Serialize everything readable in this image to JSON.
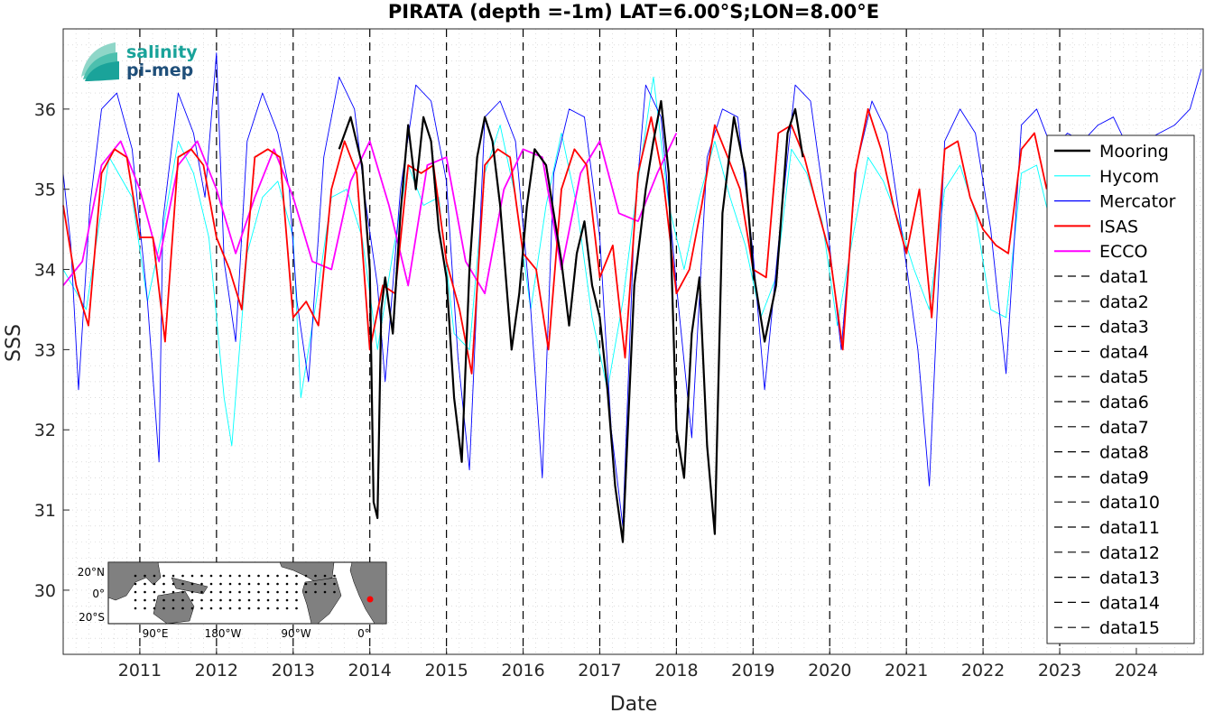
{
  "chart_data": {
    "type": "line",
    "title": "PIRATA (depth =-1m) LAT=6.00°S;LON=8.00°E",
    "xlabel": "Date",
    "ylabel": "SSS",
    "xlim": [
      "2010-01-01",
      "2024-11-15"
    ],
    "ylim": [
      29.2,
      37.0
    ],
    "x_ticks": [
      "2011",
      "2012",
      "2013",
      "2014",
      "2015",
      "2016",
      "2017",
      "2018",
      "2019",
      "2020",
      "2021",
      "2022",
      "2023",
      "2024"
    ],
    "y_ticks": [
      "30",
      "31",
      "32",
      "33",
      "34",
      "35",
      "36"
    ],
    "grid": "minor dotted",
    "legend_position": "right",
    "year_markers": [
      2011,
      2012,
      2013,
      2014,
      2015,
      2016,
      2017,
      2018,
      2019,
      2020,
      2021,
      2022,
      2023
    ],
    "series": [
      {
        "name": "Mooring",
        "color": "#000000",
        "x": [
          2013.6,
          2013.75,
          2013.9,
          2014.0,
          2014.05,
          2014.1,
          2014.15,
          2014.2,
          2014.3,
          2014.4,
          2014.5,
          2014.6,
          2014.7,
          2014.8,
          2014.9,
          2015.0,
          2015.1,
          2015.2,
          2015.3,
          2015.4,
          2015.5,
          2015.6,
          2015.7,
          2015.85,
          2015.95,
          2016.05,
          2016.15,
          2016.3,
          2016.5,
          2016.6,
          2016.7,
          2016.8,
          2016.9,
          2017.0,
          2017.1,
          2017.2,
          2017.3,
          2017.45,
          2017.6,
          2017.7,
          2017.8,
          2017.9,
          2018.0,
          2018.1,
          2018.2,
          2018.3,
          2018.4,
          2018.5,
          2018.6,
          2018.75,
          2018.9,
          2019.0,
          2019.15,
          2019.3,
          2019.45,
          2019.55,
          2019.65
        ],
        "y": [
          35.5,
          35.9,
          35.3,
          34.0,
          31.1,
          30.9,
          33.5,
          33.9,
          33.2,
          34.7,
          35.8,
          35.0,
          35.9,
          35.6,
          34.5,
          33.9,
          32.4,
          31.6,
          34.0,
          35.4,
          35.9,
          35.6,
          34.8,
          33.0,
          33.7,
          34.8,
          35.5,
          35.3,
          34.1,
          33.3,
          34.2,
          34.6,
          33.8,
          33.4,
          32.5,
          31.3,
          30.6,
          33.8,
          35.0,
          35.6,
          36.1,
          35.2,
          32.0,
          31.4,
          33.2,
          33.9,
          31.8,
          30.7,
          34.7,
          35.9,
          35.2,
          34.0,
          33.1,
          33.8,
          35.7,
          36.0,
          35.4
        ]
      },
      {
        "name": "Hycom",
        "color": "#00ffff",
        "x": [
          2010.0,
          2010.3,
          2010.6,
          2010.9,
          2011.1,
          2011.3,
          2011.5,
          2011.7,
          2011.9,
          2012.1,
          2012.2,
          2012.4,
          2012.6,
          2012.8,
          2013.0,
          2013.1,
          2013.3,
          2013.5,
          2013.7,
          2013.9,
          2014.1,
          2014.3,
          2014.5,
          2014.7,
          2014.9,
          2015.1,
          2015.3,
          2015.5,
          2015.7,
          2015.9,
          2016.1,
          2016.3,
          2016.5,
          2016.7,
          2016.9,
          2017.1,
          2017.3,
          2017.5,
          2017.7,
          2017.9,
          2018.1,
          2018.3,
          2018.5,
          2018.7,
          2018.9,
          2019.1,
          2019.3,
          2019.5,
          2019.7,
          2019.9,
          2020.1,
          2020.3,
          2020.5,
          2020.7,
          2020.9,
          2021.1,
          2021.3,
          2021.5,
          2021.7,
          2021.9,
          2022.1,
          2022.3,
          2022.5,
          2022.7,
          2022.9
        ],
        "y": [
          34.0,
          33.5,
          35.4,
          34.9,
          33.6,
          34.5,
          35.6,
          35.2,
          34.4,
          32.4,
          31.8,
          34.2,
          34.9,
          35.1,
          34.4,
          32.4,
          33.6,
          34.9,
          35.0,
          34.4,
          33.0,
          34.2,
          35.3,
          34.8,
          34.9,
          33.2,
          33.0,
          35.2,
          35.8,
          34.9,
          33.5,
          34.8,
          35.7,
          34.8,
          33.4,
          32.5,
          33.6,
          35.1,
          36.4,
          34.8,
          34.0,
          34.9,
          35.6,
          34.9,
          34.3,
          33.4,
          33.9,
          35.5,
          35.2,
          34.6,
          33.3,
          34.4,
          35.4,
          35.1,
          34.6,
          34.0,
          33.5,
          35.0,
          35.3,
          34.7,
          33.5,
          33.4,
          35.2,
          35.3,
          34.5
        ]
      },
      {
        "name": "Mercator",
        "color": "#0000ff",
        "x": [
          2010.0,
          2010.1,
          2010.2,
          2010.35,
          2010.5,
          2010.7,
          2010.9,
          2011.1,
          2011.25,
          2011.3,
          2011.5,
          2011.7,
          2011.85,
          2012.0,
          2012.1,
          2012.25,
          2012.4,
          2012.6,
          2012.8,
          2012.95,
          2013.05,
          2013.2,
          2013.4,
          2013.6,
          2013.8,
          2013.95,
          2014.1,
          2014.2,
          2014.4,
          2014.6,
          2014.8,
          2015.0,
          2015.15,
          2015.3,
          2015.5,
          2015.7,
          2015.9,
          2016.1,
          2016.25,
          2016.4,
          2016.6,
          2016.8,
          2017.0,
          2017.15,
          2017.3,
          2017.45,
          2017.6,
          2017.8,
          2018.0,
          2018.2,
          2018.4,
          2018.6,
          2018.8,
          2019.0,
          2019.15,
          2019.35,
          2019.55,
          2019.75,
          2019.95,
          2020.15,
          2020.35,
          2020.55,
          2020.75,
          2020.95,
          2021.15,
          2021.3,
          2021.5,
          2021.7,
          2021.9,
          2022.1,
          2022.3,
          2022.5,
          2022.7,
          2022.9,
          2023.1,
          2023.3,
          2023.5,
          2023.7,
          2023.9,
          2024.1,
          2024.3,
          2024.5,
          2024.7,
          2024.85
        ],
        "y": [
          35.2,
          34.3,
          32.5,
          34.8,
          36.0,
          36.2,
          35.5,
          33.6,
          31.6,
          34.6,
          36.2,
          35.7,
          34.9,
          36.7,
          34.1,
          33.1,
          35.6,
          36.2,
          35.7,
          35.0,
          33.6,
          32.6,
          35.4,
          36.4,
          36.0,
          34.8,
          33.8,
          32.6,
          35.0,
          36.3,
          36.1,
          35.1,
          32.9,
          31.5,
          35.9,
          36.1,
          35.6,
          33.5,
          31.4,
          35.2,
          36.0,
          35.9,
          34.4,
          32.0,
          30.8,
          34.6,
          36.3,
          35.9,
          33.8,
          31.9,
          35.4,
          36.0,
          35.9,
          34.2,
          32.5,
          34.5,
          36.3,
          36.1,
          34.7,
          33.0,
          35.3,
          36.1,
          35.7,
          34.4,
          33.0,
          31.3,
          35.6,
          36.0,
          35.7,
          34.5,
          32.7,
          35.8,
          36.0,
          35.5,
          35.7,
          35.6,
          35.8,
          35.9,
          35.5,
          35.6,
          35.7,
          35.8,
          36.0,
          36.5
        ]
      },
      {
        "name": "ISAS",
        "color": "#ff0000",
        "x": [
          2010.0,
          2010.17,
          2010.33,
          2010.5,
          2010.67,
          2010.83,
          2011.0,
          2011.17,
          2011.33,
          2011.5,
          2011.67,
          2011.83,
          2012.0,
          2012.17,
          2012.33,
          2012.5,
          2012.67,
          2012.83,
          2013.0,
          2013.17,
          2013.33,
          2013.5,
          2013.67,
          2013.83,
          2014.0,
          2014.17,
          2014.33,
          2014.5,
          2014.67,
          2014.83,
          2015.0,
          2015.17,
          2015.33,
          2015.5,
          2015.67,
          2015.83,
          2016.0,
          2016.17,
          2016.33,
          2016.5,
          2016.67,
          2016.83,
          2017.0,
          2017.17,
          2017.33,
          2017.5,
          2017.67,
          2017.83,
          2018.0,
          2018.17,
          2018.33,
          2018.5,
          2018.67,
          2018.83,
          2019.0,
          2019.17,
          2019.33,
          2019.5,
          2019.67,
          2019.83,
          2020.0,
          2020.17,
          2020.33,
          2020.5,
          2020.67,
          2020.83,
          2021.0,
          2021.17,
          2021.33,
          2021.5,
          2021.67,
          2021.83,
          2022.0,
          2022.17,
          2022.33,
          2022.5,
          2022.67,
          2022.83
        ],
        "y": [
          34.8,
          33.8,
          33.3,
          35.2,
          35.5,
          35.4,
          34.4,
          34.4,
          33.1,
          35.4,
          35.5,
          35.3,
          34.4,
          34.0,
          33.5,
          35.4,
          35.5,
          35.4,
          33.4,
          33.6,
          33.3,
          35.0,
          35.6,
          35.2,
          33.0,
          33.8,
          33.7,
          35.3,
          35.2,
          35.3,
          34.1,
          33.5,
          32.7,
          35.3,
          35.5,
          35.4,
          34.2,
          34.0,
          33.0,
          35.0,
          35.5,
          35.3,
          33.9,
          34.3,
          32.9,
          35.2,
          35.9,
          35.1,
          33.7,
          34.0,
          34.8,
          35.8,
          35.4,
          35.0,
          34.0,
          33.9,
          35.7,
          35.8,
          35.4,
          34.8,
          34.2,
          33.0,
          35.2,
          36.0,
          35.5,
          34.8,
          34.2,
          35.0,
          33.4,
          35.5,
          35.6,
          34.9,
          34.5,
          34.3,
          34.2,
          35.5,
          35.7,
          35.0
        ]
      },
      {
        "name": "ECCO",
        "color": "#ff00ff",
        "x": [
          2010.0,
          2010.25,
          2010.5,
          2010.75,
          2011.0,
          2011.25,
          2011.5,
          2011.75,
          2012.0,
          2012.25,
          2012.5,
          2012.75,
          2013.0,
          2013.25,
          2013.5,
          2013.75,
          2014.0,
          2014.25,
          2014.5,
          2014.75,
          2015.0,
          2015.25,
          2015.5,
          2015.75,
          2016.0,
          2016.25,
          2016.5,
          2016.75,
          2017.0,
          2017.25,
          2017.5,
          2017.75,
          2018.0
        ],
        "y": [
          33.8,
          34.1,
          35.3,
          35.6,
          35.0,
          34.1,
          35.3,
          35.6,
          35.0,
          34.2,
          34.9,
          35.5,
          34.9,
          34.1,
          34.0,
          35.1,
          35.6,
          34.8,
          33.8,
          35.3,
          35.4,
          34.1,
          33.7,
          35.0,
          35.5,
          35.4,
          34.0,
          35.2,
          35.6,
          34.7,
          34.6,
          35.2,
          35.7
        ]
      }
    ],
    "legend": [
      "Mooring",
      "Hycom",
      "Mercator",
      "ISAS",
      "ECCO",
      "data1",
      "data2",
      "data3",
      "data4",
      "data5",
      "data6",
      "data7",
      "data8",
      "data9",
      "data10",
      "data11",
      "data12",
      "data13",
      "data14",
      "data15"
    ]
  },
  "logo": {
    "line1": "salinity",
    "line2": "pi-mep"
  },
  "inset_map": {
    "lat_ticks": [
      "20°N",
      "0°",
      "20°S"
    ],
    "lon_ticks": [
      "90°E",
      "180°W",
      "90°W",
      "0°"
    ],
    "marker_color": "#ff0000"
  }
}
